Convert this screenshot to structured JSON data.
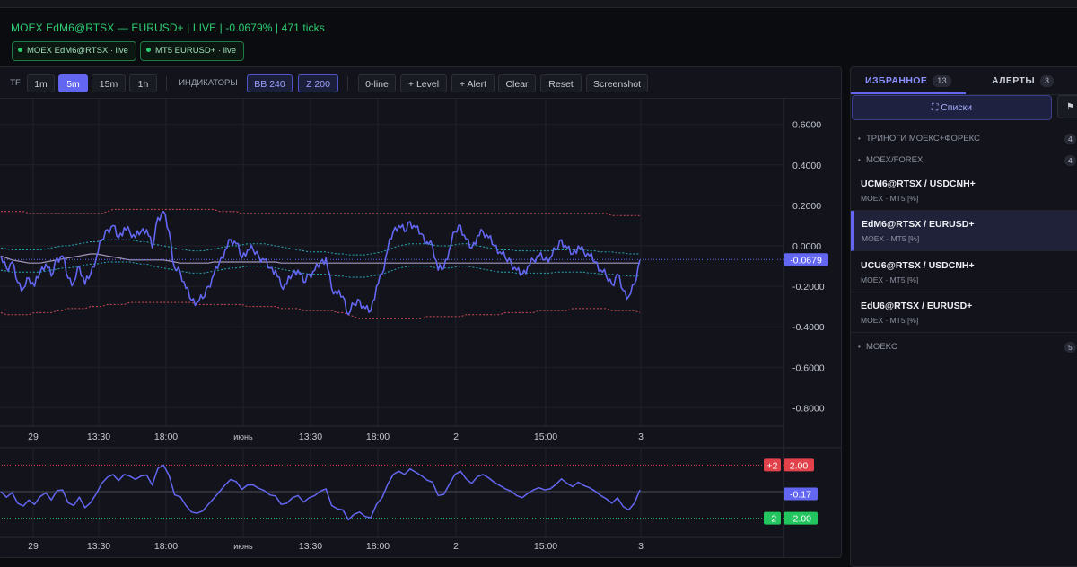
{
  "header": {
    "title": "MOEX EdM6@RTSX — EURUSD+ | LIVE | -0.0679% | 471 ticks",
    "pills": [
      "MOEX EdM6@RTSX · live",
      "MT5 EURUSD+ · live"
    ]
  },
  "toolbar": {
    "tf_label": "TF",
    "timeframes": [
      "1m",
      "5m",
      "15m",
      "1h"
    ],
    "active_timeframe": "5m",
    "indicators_label": "ИНДИКАТОРЫ",
    "indicators": [
      "BB 240",
      "Z 200"
    ],
    "actions": [
      "0-line",
      "+ Level",
      "+ Alert",
      "Clear",
      "Reset",
      "Screenshot"
    ]
  },
  "main_chart": {
    "y_ticks": [
      "0.6000",
      "0.4000",
      "0.2000",
      "0.0000",
      "-0.2000",
      "-0.4000",
      "-0.6000",
      "-0.8000"
    ],
    "x_ticks": [
      "29",
      "13:30",
      "18:00",
      "июнь",
      "13:30",
      "18:00",
      "2",
      "15:00",
      "3"
    ],
    "last_value_label": "-0.0679",
    "last_value": -0.0679,
    "series_color": "#6366f1",
    "series": [
      -0.05,
      -0.11,
      -0.08,
      -0.18,
      -0.21,
      -0.16,
      -0.2,
      -0.13,
      -0.09,
      -0.15,
      -0.06,
      -0.05,
      -0.16,
      -0.18,
      -0.1,
      -0.19,
      -0.14,
      -0.06,
      0.03,
      0.08,
      0.1,
      0.04,
      0.09,
      0.07,
      0.04,
      0.07,
      0.08,
      -0.01,
      0.14,
      0.17,
      0.07,
      -0.11,
      -0.13,
      -0.21,
      -0.27,
      -0.28,
      -0.26,
      -0.2,
      -0.14,
      -0.08,
      -0.02,
      0.03,
      0.01,
      -0.06,
      -0.02,
      -0.02,
      -0.05,
      -0.07,
      -0.11,
      -0.12,
      -0.2,
      -0.19,
      -0.14,
      -0.12,
      -0.18,
      -0.14,
      -0.12,
      -0.08,
      -0.06,
      -0.21,
      -0.24,
      -0.25,
      -0.34,
      -0.29,
      -0.27,
      -0.31,
      -0.32,
      -0.2,
      -0.14,
      -0.02,
      0.07,
      0.1,
      0.07,
      0.12,
      0.09,
      0.06,
      0.02,
      0.0,
      -0.12,
      -0.11,
      -0.02,
      0.07,
      0.1,
      0.03,
      -0.01,
      0.05,
      0.07,
      0.04,
      0.0,
      -0.03,
      -0.06,
      -0.08,
      -0.12,
      -0.14,
      -0.1,
      -0.07,
      -0.05,
      -0.07,
      -0.06,
      -0.02,
      0.03,
      -0.01,
      -0.04,
      0.0,
      -0.03,
      -0.05,
      -0.08,
      -0.12,
      -0.15,
      -0.19,
      -0.14,
      -0.22,
      -0.25,
      -0.19,
      -0.07
    ],
    "bb_mid": [
      -0.05,
      -0.06,
      -0.07,
      -0.075,
      -0.08,
      -0.085,
      -0.085,
      -0.085,
      -0.08,
      -0.075,
      -0.07,
      -0.065,
      -0.06,
      -0.055,
      -0.05,
      -0.045,
      -0.04,
      -0.04,
      -0.045,
      -0.05,
      -0.055,
      -0.06,
      -0.065,
      -0.07,
      -0.07,
      -0.07,
      -0.07,
      -0.07,
      -0.07,
      -0.07,
      -0.075,
      -0.08,
      -0.085,
      -0.085,
      -0.085,
      -0.085,
      -0.085,
      -0.085,
      -0.08,
      -0.08,
      -0.08,
      -0.08,
      -0.08,
      -0.08,
      -0.08,
      -0.08,
      -0.08,
      -0.08,
      -0.08,
      -0.08,
      -0.085,
      -0.085,
      -0.085,
      -0.085,
      -0.085,
      -0.085,
      -0.085,
      -0.085,
      -0.085,
      -0.085,
      -0.085,
      -0.085,
      -0.085,
      -0.085,
      -0.085,
      -0.085,
      -0.085,
      -0.085,
      -0.085,
      -0.085,
      -0.085,
      -0.085,
      -0.085,
      -0.085,
      -0.085,
      -0.085,
      -0.085,
      -0.085,
      -0.085,
      -0.085,
      -0.085,
      -0.085,
      -0.085,
      -0.085,
      -0.085,
      -0.085,
      -0.085,
      -0.085,
      -0.085,
      -0.085,
      -0.085,
      -0.085,
      -0.085,
      -0.085,
      -0.085,
      -0.085,
      -0.085,
      -0.085,
      -0.085,
      -0.085,
      -0.085,
      -0.085,
      -0.085,
      -0.085,
      -0.085,
      -0.085,
      -0.085,
      -0.085,
      -0.085,
      -0.085,
      -0.085,
      -0.085,
      -0.085,
      -0.085,
      -0.085
    ],
    "bb_upper": [
      0.17,
      0.17,
      0.17,
      0.17,
      0.17,
      0.16,
      0.16,
      0.16,
      0.16,
      0.16,
      0.16,
      0.16,
      0.16,
      0.16,
      0.16,
      0.16,
      0.16,
      0.16,
      0.16,
      0.17,
      0.18,
      0.18,
      0.18,
      0.18,
      0.18,
      0.18,
      0.18,
      0.18,
      0.18,
      0.18,
      0.18,
      0.18,
      0.18,
      0.18,
      0.18,
      0.18,
      0.18,
      0.18,
      0.18,
      0.17,
      0.17,
      0.17,
      0.17,
      0.16,
      0.16,
      0.16,
      0.16,
      0.16,
      0.16,
      0.16,
      0.16,
      0.16,
      0.16,
      0.16,
      0.16,
      0.16,
      0.16,
      0.16,
      0.16,
      0.16,
      0.16,
      0.16,
      0.16,
      0.16,
      0.16,
      0.16,
      0.16,
      0.16,
      0.16,
      0.16,
      0.16,
      0.16,
      0.16,
      0.16,
      0.16,
      0.16,
      0.16,
      0.16,
      0.16,
      0.16,
      0.16,
      0.16,
      0.16,
      0.16,
      0.16,
      0.16,
      0.16,
      0.16,
      0.16,
      0.16,
      0.16,
      0.16,
      0.16,
      0.16,
      0.16,
      0.16,
      0.16,
      0.16,
      0.16,
      0.16,
      0.16,
      0.16,
      0.16,
      0.16,
      0.16,
      0.16,
      0.16,
      0.16,
      0.16,
      0.15,
      0.15,
      0.15,
      0.15,
      0.15,
      0.15
    ],
    "bb_lower": [
      -0.33,
      -0.34,
      -0.34,
      -0.34,
      -0.34,
      -0.34,
      -0.33,
      -0.33,
      -0.33,
      -0.33,
      -0.32,
      -0.32,
      -0.31,
      -0.31,
      -0.31,
      -0.31,
      -0.3,
      -0.3,
      -0.3,
      -0.29,
      -0.29,
      -0.29,
      -0.29,
      -0.28,
      -0.28,
      -0.28,
      -0.28,
      -0.28,
      -0.28,
      -0.28,
      -0.28,
      -0.28,
      -0.28,
      -0.28,
      -0.28,
      -0.29,
      -0.29,
      -0.29,
      -0.29,
      -0.29,
      -0.29,
      -0.29,
      -0.29,
      -0.29,
      -0.3,
      -0.3,
      -0.3,
      -0.3,
      -0.3,
      -0.3,
      -0.31,
      -0.31,
      -0.31,
      -0.31,
      -0.32,
      -0.32,
      -0.32,
      -0.32,
      -0.32,
      -0.32,
      -0.33,
      -0.33,
      -0.34,
      -0.35,
      -0.36,
      -0.36,
      -0.36,
      -0.36,
      -0.36,
      -0.36,
      -0.36,
      -0.36,
      -0.36,
      -0.36,
      -0.36,
      -0.36,
      -0.35,
      -0.35,
      -0.35,
      -0.35,
      -0.35,
      -0.35,
      -0.35,
      -0.34,
      -0.34,
      -0.34,
      -0.34,
      -0.34,
      -0.34,
      -0.34,
      -0.33,
      -0.33,
      -0.33,
      -0.33,
      -0.33,
      -0.33,
      -0.32,
      -0.32,
      -0.32,
      -0.32,
      -0.32,
      -0.32,
      -0.31,
      -0.31,
      -0.31,
      -0.31,
      -0.31,
      -0.31,
      -0.31,
      -0.32,
      -0.32,
      -0.32,
      -0.32,
      -0.32,
      -0.33
    ],
    "inner_upper": [
      -0.01,
      -0.015,
      -0.02,
      -0.02,
      -0.02,
      -0.02,
      -0.02,
      -0.02,
      -0.015,
      -0.01,
      -0.005,
      0.0,
      0.0,
      0.005,
      0.01,
      0.015,
      0.02,
      0.02,
      0.025,
      0.03,
      0.03,
      0.03,
      0.03,
      0.03,
      0.025,
      0.02,
      0.02,
      0.01,
      0.005,
      0.0,
      -0.005,
      -0.01,
      -0.015,
      -0.02,
      -0.025,
      -0.025,
      -0.025,
      -0.02,
      -0.015,
      -0.01,
      -0.005,
      0.0,
      0.0,
      0.005,
      0.01,
      0.01,
      0.01,
      0.01,
      0.005,
      0.0,
      -0.005,
      -0.01,
      -0.015,
      -0.02,
      -0.025,
      -0.03,
      -0.03,
      -0.03,
      -0.03,
      -0.035,
      -0.04,
      -0.04,
      -0.045,
      -0.045,
      -0.045,
      -0.045,
      -0.04,
      -0.035,
      -0.03,
      -0.02,
      -0.01,
      0.0,
      0.005,
      0.01,
      0.01,
      0.01,
      0.01,
      0.005,
      0.0,
      0.0,
      0.0,
      0.005,
      0.01,
      0.01,
      0.005,
      0.0,
      -0.005,
      -0.01,
      -0.015,
      -0.02,
      -0.02,
      -0.02,
      -0.025,
      -0.025,
      -0.025,
      -0.025,
      -0.025,
      -0.025,
      -0.025,
      -0.02,
      -0.02,
      -0.02,
      -0.02,
      -0.02,
      -0.02,
      -0.025,
      -0.025,
      -0.03,
      -0.03,
      -0.03,
      -0.035,
      -0.035,
      -0.04,
      -0.04,
      -0.04
    ],
    "inner_lower": [
      -0.12,
      -0.125,
      -0.13,
      -0.13,
      -0.13,
      -0.13,
      -0.13,
      -0.13,
      -0.125,
      -0.12,
      -0.115,
      -0.11,
      -0.11,
      -0.105,
      -0.1,
      -0.095,
      -0.09,
      -0.09,
      -0.085,
      -0.08,
      -0.08,
      -0.08,
      -0.08,
      -0.08,
      -0.085,
      -0.09,
      -0.09,
      -0.1,
      -0.105,
      -0.11,
      -0.115,
      -0.12,
      -0.125,
      -0.13,
      -0.135,
      -0.135,
      -0.135,
      -0.13,
      -0.125,
      -0.12,
      -0.115,
      -0.11,
      -0.11,
      -0.105,
      -0.1,
      -0.1,
      -0.1,
      -0.1,
      -0.105,
      -0.11,
      -0.115,
      -0.12,
      -0.125,
      -0.13,
      -0.135,
      -0.14,
      -0.14,
      -0.14,
      -0.14,
      -0.145,
      -0.15,
      -0.15,
      -0.155,
      -0.155,
      -0.155,
      -0.155,
      -0.15,
      -0.145,
      -0.14,
      -0.13,
      -0.12,
      -0.11,
      -0.105,
      -0.1,
      -0.1,
      -0.1,
      -0.1,
      -0.105,
      -0.11,
      -0.11,
      -0.11,
      -0.105,
      -0.1,
      -0.1,
      -0.105,
      -0.11,
      -0.115,
      -0.12,
      -0.125,
      -0.13,
      -0.13,
      -0.13,
      -0.135,
      -0.135,
      -0.135,
      -0.135,
      -0.135,
      -0.135,
      -0.135,
      -0.13,
      -0.13,
      -0.13,
      -0.13,
      -0.13,
      -0.13,
      -0.135,
      -0.135,
      -0.14,
      -0.14,
      -0.14,
      -0.145,
      -0.145,
      -0.15,
      -0.15,
      -0.15
    ],
    "y_range": [
      -0.9,
      0.72
    ],
    "colors": {
      "bb_bands": "#d14b55",
      "inner_bands": "#27a7b8",
      "mid_line": "#c8b6e2",
      "zero_line": "#6366f1"
    }
  },
  "sub_chart": {
    "x_ticks": [
      "29",
      "13:30",
      "18:00",
      "июнь",
      "13:30",
      "18:00",
      "2",
      "15:00",
      "3"
    ],
    "upper_tag": "+2",
    "upper_value": "2.00",
    "lower_tag": "-2",
    "lower_value": "-2.00",
    "last_value_label": "-0.17",
    "y_range": [
      -3.2,
      3.3
    ],
    "colors": {
      "upper": "#e0414a",
      "lower": "#22c55e",
      "series": "#6366f1"
    }
  },
  "sidebar": {
    "tabs": [
      {
        "label": "ИЗБРАННОЕ",
        "count": "13"
      },
      {
        "label": "АЛЕРТЫ",
        "count": "3"
      }
    ],
    "lists_button": "⛶ Списки",
    "flag_icon": "⚑",
    "groups_top": [
      {
        "label": "ТРИНОГИ МОЕКС+ФОРЕКС",
        "count": "4"
      },
      {
        "label": "MOEX/FOREX",
        "count": "4"
      }
    ],
    "items": [
      {
        "name": "UCM6@RTSX / USDCNH+",
        "sub": "MOEX · MT5 [%]"
      },
      {
        "name": "EdM6@RTSX / EURUSD+",
        "sub": "MOEX · MT5 [%]"
      },
      {
        "name": "UCU6@RTSX / USDCNH+",
        "sub": "MOEX · MT5 [%]"
      },
      {
        "name": "EdU6@RTSX / EURUSD+",
        "sub": "MOEX · MT5 [%]"
      }
    ],
    "selected_item": 1,
    "groups_bottom": [
      {
        "label": "MOEKC",
        "count": "5"
      }
    ]
  }
}
